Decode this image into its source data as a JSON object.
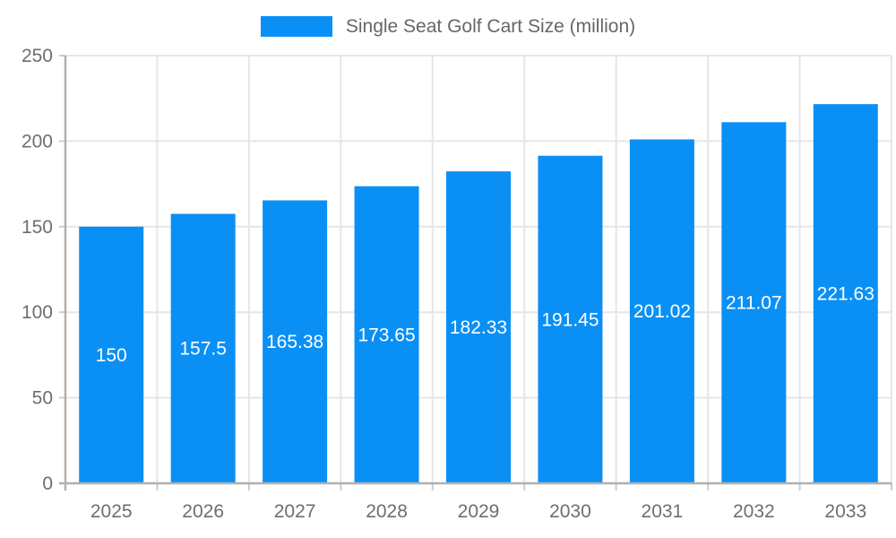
{
  "chart_data": {
    "type": "bar",
    "title": "Single Seat Golf Cart Size (million)",
    "legend": {
      "label": "Single Seat Golf Cart Size (million)",
      "position": "top"
    },
    "categories": [
      "2025",
      "2026",
      "2027",
      "2028",
      "2029",
      "2030",
      "2031",
      "2032",
      "2033"
    ],
    "values": [
      150,
      157.5,
      165.38,
      173.65,
      182.33,
      191.45,
      201.02,
      211.07,
      221.63
    ],
    "value_labels": [
      "150",
      "157.5",
      "165.38",
      "173.65",
      "182.33",
      "191.45",
      "201.02",
      "211.07",
      "221.63"
    ],
    "xlabel": "",
    "ylabel": "",
    "ylim": [
      0,
      250
    ],
    "yticks": [
      0,
      50,
      100,
      150,
      200,
      250
    ],
    "grid": true,
    "colors": {
      "bar": "#0a90f5",
      "axis_line": "#b0b0b0",
      "grid_line": "#e6e6e6",
      "tick_mark": "#cccccc",
      "tick_label": "#6e6e6e",
      "legend_text": "#666666",
      "value_label": "#ffffff",
      "background": "#ffffff"
    }
  }
}
